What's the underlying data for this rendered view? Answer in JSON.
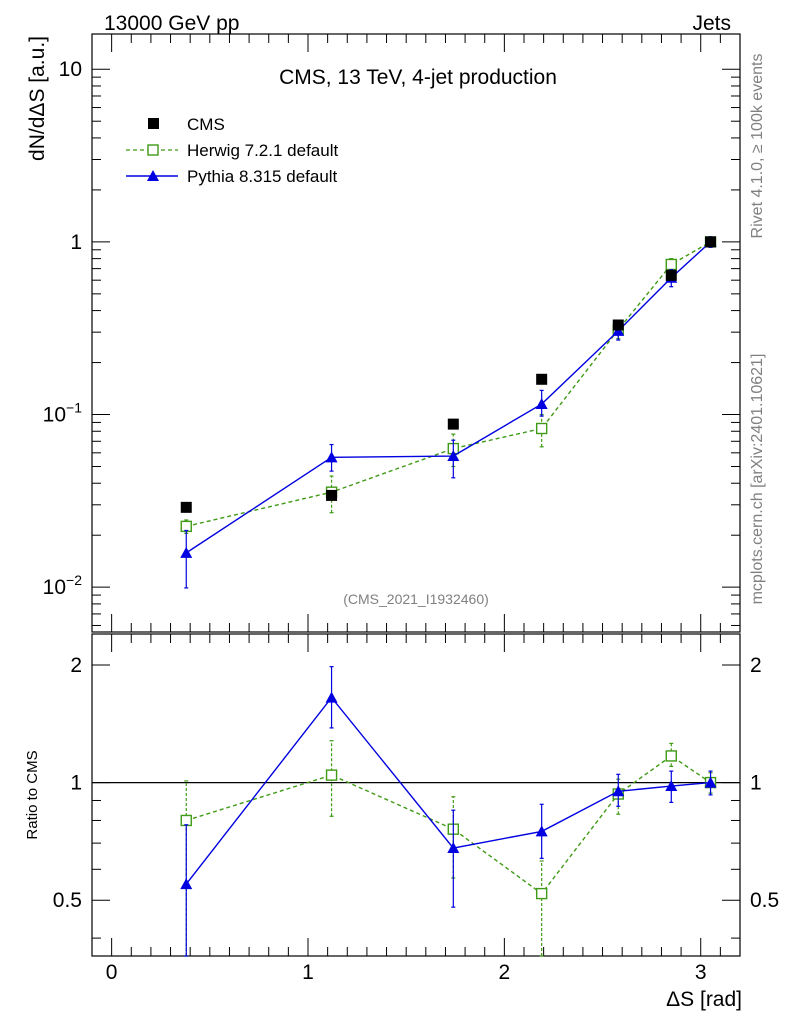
{
  "header": {
    "left": "13000 GeV pp",
    "right": "Jets"
  },
  "side_labels": {
    "rivet": "Rivet 4.1.0, ≥ 100k events",
    "mcplots": "mcplots.cern.ch [arXiv:2401.10621]"
  },
  "chart_data": [
    {
      "panel": "main",
      "type": "line",
      "title": "CMS, 13 TeV, 4-jet production",
      "watermark": "(CMS_2021_I1932460)",
      "ylabel": "dN/dΔS [a.u.]",
      "yscale": "log",
      "ylim": [
        0.0055,
        16
      ],
      "y_ticks": [
        {
          "value": 0.01,
          "base": "10",
          "exp": "−2"
        },
        {
          "value": 0.1,
          "base": "10",
          "exp": "−1"
        },
        {
          "value": 1,
          "base": "1",
          "exp": ""
        },
        {
          "value": 10,
          "base": "10",
          "exp": ""
        }
      ],
      "x": [
        0.38,
        1.12,
        1.74,
        2.19,
        2.58,
        2.85,
        3.05
      ],
      "series": [
        {
          "name": "CMS",
          "color": "#000000",
          "marker": "filled-square",
          "line": "none",
          "values": [
            0.029,
            0.034,
            0.088,
            0.16,
            0.33,
            0.64,
            1.0
          ]
        },
        {
          "name": "Herwig 7.2.1 default",
          "color": "#3f9a16",
          "marker": "open-square",
          "line": "dashed",
          "values": [
            0.0225,
            0.0355,
            0.0635,
            0.083,
            0.31,
            0.74,
            1.0
          ],
          "err_low": [
            0.0205,
            0.027,
            0.05,
            0.065,
            0.275,
            0.68,
            0.95
          ],
          "err_high": [
            0.0245,
            0.044,
            0.077,
            0.1,
            0.345,
            0.8,
            1.05
          ]
        },
        {
          "name": "Pythia 8.315 default",
          "color": "#0000e0",
          "marker": "filled-triangle",
          "line": "solid",
          "values": [
            0.0158,
            0.0565,
            0.0575,
            0.115,
            0.305,
            0.62,
            1.0
          ],
          "err_low": [
            0.0099,
            0.047,
            0.043,
            0.098,
            0.27,
            0.55,
            0.93
          ],
          "err_high": [
            0.0213,
            0.067,
            0.071,
            0.138,
            0.34,
            0.69,
            1.07
          ]
        }
      ]
    },
    {
      "panel": "ratio",
      "type": "line",
      "ylabel": "Ratio to CMS",
      "yscale": "log",
      "ylim": [
        0.36,
        2.4
      ],
      "y_ticks": [
        {
          "value": 0.5,
          "label": "0.5"
        },
        {
          "value": 1,
          "label": "1"
        },
        {
          "value": 2,
          "label": "2"
        }
      ],
      "xlabel": "ΔS [rad]",
      "xlim": [
        -0.1,
        3.2
      ],
      "x_ticks": [
        0,
        1,
        2,
        3
      ],
      "x": [
        0.38,
        1.12,
        1.74,
        2.19,
        2.58,
        2.85,
        3.05
      ],
      "series": [
        {
          "name": "Herwig 7.2.1 default",
          "color": "#3f9a16",
          "marker": "open-square",
          "line": "dashed",
          "values": [
            0.8,
            1.045,
            0.76,
            0.52,
            0.935,
            1.17,
            1.0
          ],
          "err_low": [
            0.36,
            0.82,
            0.57,
            0.36,
            0.83,
            1.1,
            0.94
          ],
          "err_high": [
            1.01,
            1.28,
            0.92,
            0.63,
            1.02,
            1.26,
            1.06
          ]
        },
        {
          "name": "Pythia 8.315 default",
          "color": "#0000e0",
          "marker": "filled-triangle",
          "line": "solid",
          "values": [
            0.55,
            1.65,
            0.68,
            0.75,
            0.95,
            0.98,
            1.0
          ],
          "err_low": [
            0.36,
            1.38,
            0.48,
            0.64,
            0.87,
            0.89,
            0.93
          ],
          "err_high": [
            0.78,
            1.98,
            0.85,
            0.88,
            1.05,
            1.07,
            1.07
          ]
        }
      ]
    }
  ]
}
